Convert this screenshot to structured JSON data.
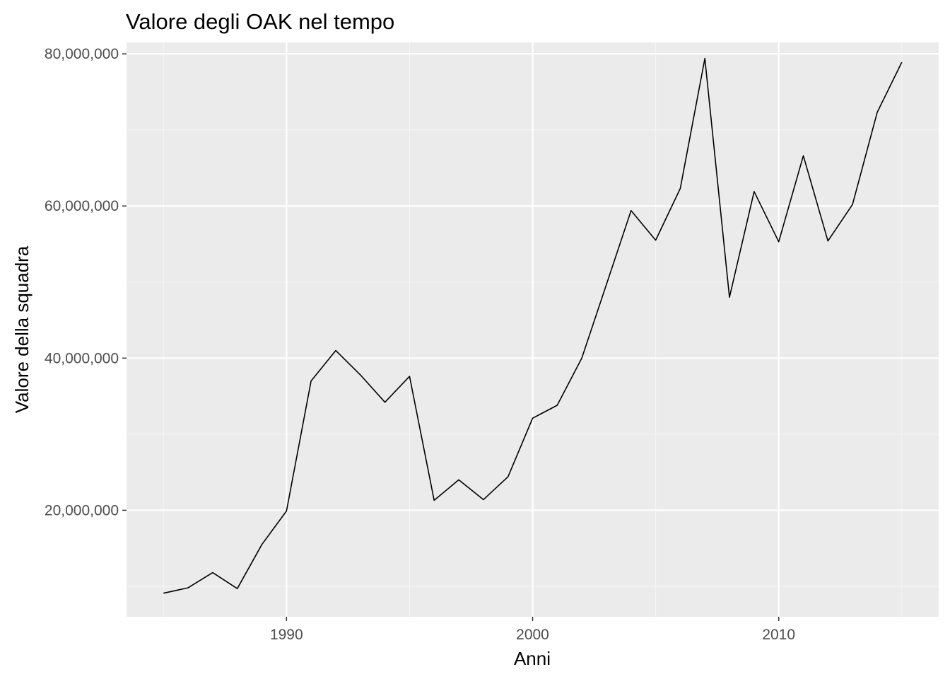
{
  "chart_data": {
    "type": "line",
    "title": "Valore degli OAK nel tempo",
    "xlabel": "Anni",
    "ylabel": "Valore della squadra",
    "xlim": [
      1983.5,
      2016.5
    ],
    "ylim": [
      6000000,
      81500000
    ],
    "x_major_ticks": [
      1990,
      2000,
      2010
    ],
    "x_minor_ticks": [
      1985,
      1995,
      2005,
      2015
    ],
    "y_major_ticks": [
      20000000,
      40000000,
      60000000,
      80000000
    ],
    "y_minor_ticks": [
      10000000,
      30000000,
      50000000,
      70000000
    ],
    "x_tick_labels": [
      "1990",
      "2000",
      "2010"
    ],
    "y_tick_labels": [
      "20,000,000",
      "40,000,000",
      "60,000,000",
      "80,000,000"
    ],
    "grid": true,
    "legend": "none",
    "colors": {
      "panel_background": "#ebebeb",
      "grid_major": "#ffffff",
      "grid_minor": "#f5f5f5",
      "line": "#000000",
      "tick_label": "#4d4d4d",
      "tick_mark": "#333333"
    },
    "series": [
      {
        "x": [
          1985,
          1986,
          1987,
          1988,
          1989,
          1990,
          1991,
          1992,
          1993,
          1994,
          1995,
          1996,
          1997,
          1998,
          1999,
          2000,
          2001,
          2002,
          2003,
          2004,
          2005,
          2006,
          2007,
          2008,
          2009,
          2010,
          2011,
          2012,
          2013,
          2014,
          2015
        ],
        "values": [
          9100000,
          9800000,
          11800000,
          9700000,
          15500000,
          19900000,
          37000000,
          41000000,
          37800000,
          34200000,
          37600000,
          21300000,
          24000000,
          21400000,
          24400000,
          32100000,
          33800000,
          40000000,
          49700000,
          59400000,
          55500000,
          62300000,
          79400000,
          48000000,
          61900000,
          55300000,
          66600000,
          55400000,
          60200000,
          72300000,
          78900000
        ]
      }
    ]
  }
}
